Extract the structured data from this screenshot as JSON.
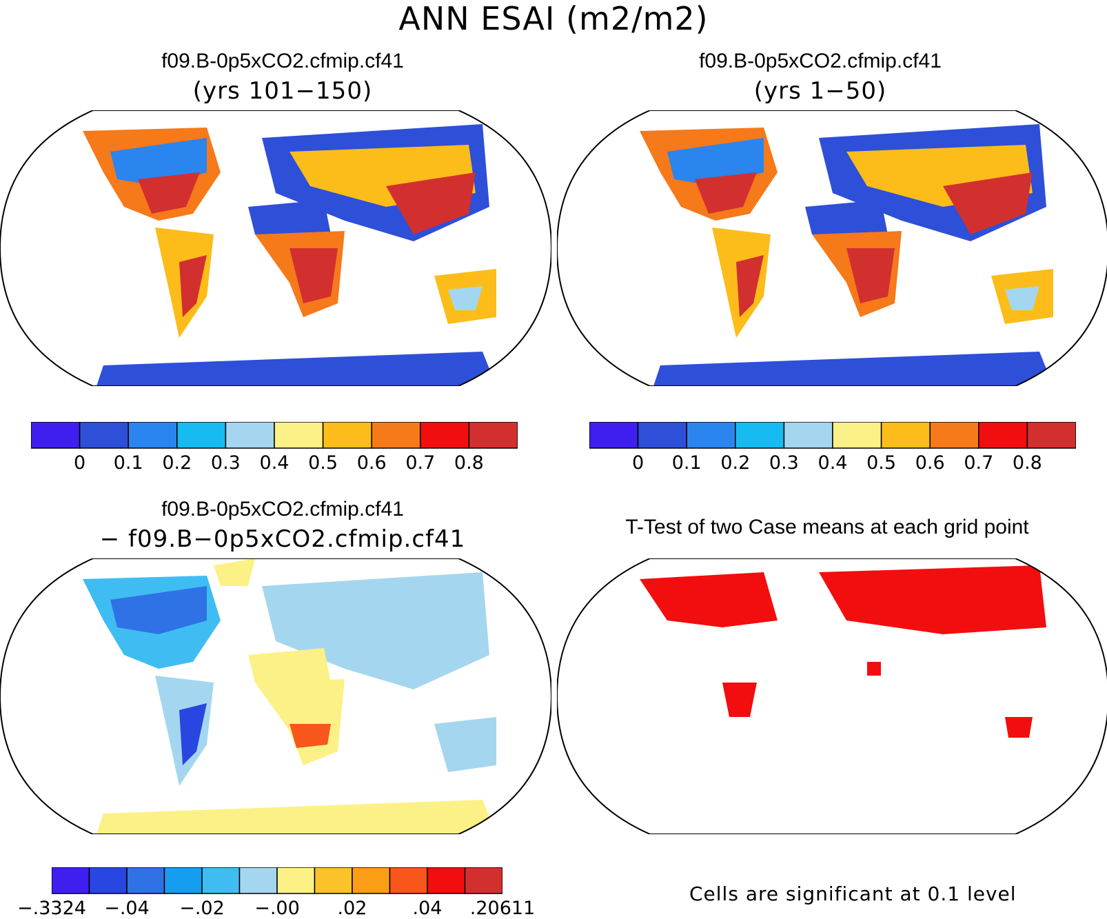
{
  "title": "ANN ESAI (m2/m2)",
  "panels": {
    "top_left": {
      "title": "f09.B-0p5xCO2.cfmip.cf41",
      "subtitle": "(yrs 101−150)"
    },
    "top_right": {
      "title": "f09.B-0p5xCO2.cfmip.cf41",
      "subtitle": "(yrs 1−50)"
    },
    "bottom_left": {
      "title": "f09.B-0p5xCO2.cfmip.cf41",
      "subtitle": "− f09.B−0p5xCO2.cfmip.cf41"
    },
    "bottom_right": {
      "title": "T-Test of two Case means at each grid point",
      "footnote": "Cells are significant at 0.1 level"
    }
  },
  "colorbars": {
    "abs": {
      "colors": [
        "#3f1ef0",
        "#2e4fd8",
        "#2a85ef",
        "#16bbf2",
        "#a5d6ef",
        "#fcf186",
        "#fcbd1a",
        "#f6791a",
        "#f20e0e",
        "#d2302f"
      ],
      "ticks": [
        "0",
        "0.1",
        "0.2",
        "0.3",
        "0.4",
        "0.5",
        "0.6",
        "0.7",
        "0.8"
      ]
    },
    "diff": {
      "colors": [
        "#3f1ef0",
        "#2747e0",
        "#2e72e6",
        "#159eef",
        "#3fbdf2",
        "#a5d6ef",
        "#fcf186",
        "#fcc22a",
        "#fb9d16",
        "#f8561a",
        "#f20e0e",
        "#d2302f"
      ],
      "ticks": [
        "−.3324",
        "−.04",
        "−.02",
        "−.00",
        ".02",
        ".04",
        ".20611"
      ]
    }
  },
  "map_fill": {
    "ocean": "#ffffff",
    "outline": "#000000",
    "significant": "#f20e0e"
  }
}
